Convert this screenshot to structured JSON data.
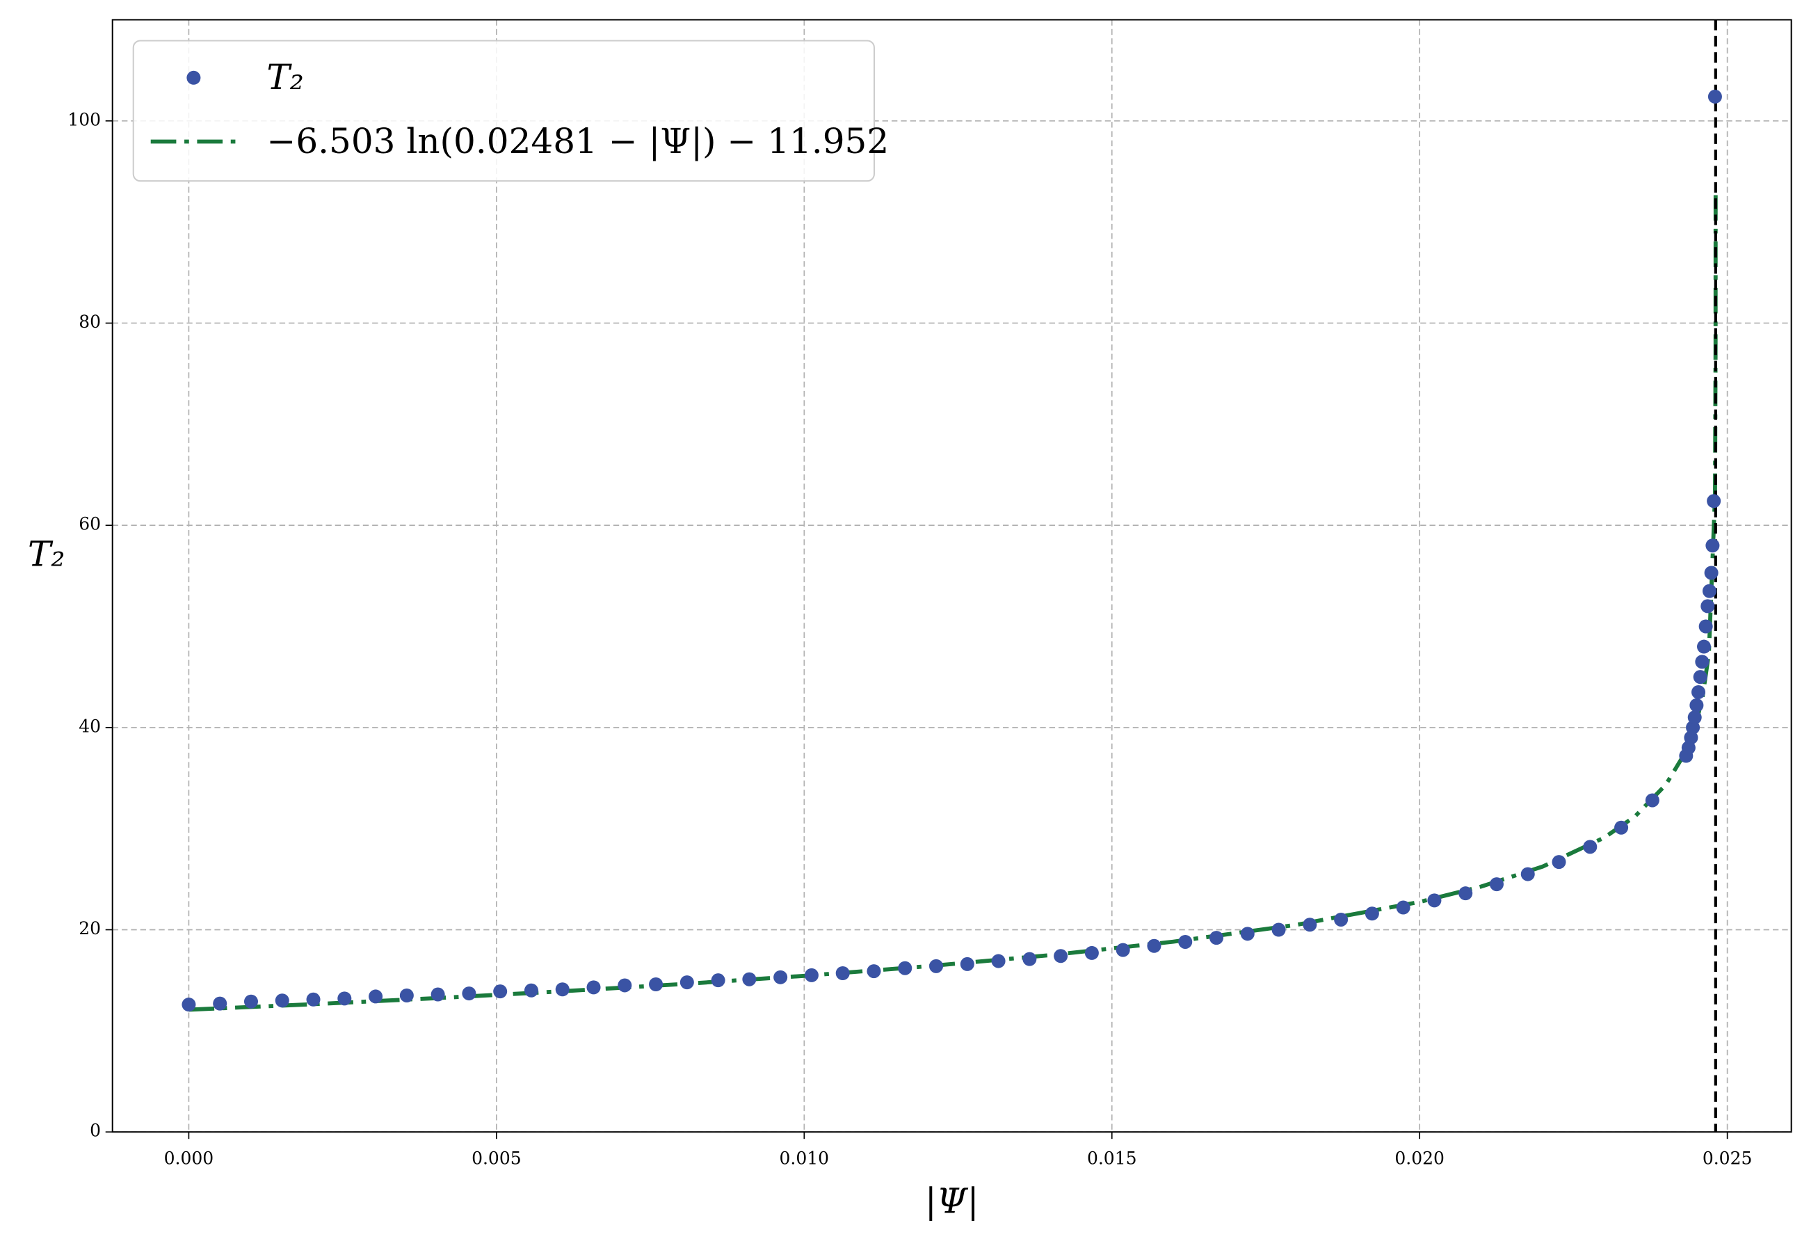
{
  "chart_data": {
    "type": "scatter",
    "xlabel": "|Ψ|",
    "ylabel": "T₂",
    "xlim": [
      -0.00124,
      0.02604
    ],
    "ylim": [
      0,
      110
    ],
    "xticks": [
      {
        "value": 0,
        "label": "0.000"
      },
      {
        "value": 0.005,
        "label": "0.005"
      },
      {
        "value": 0.01,
        "label": "0.010"
      },
      {
        "value": 0.015,
        "label": "0.015"
      },
      {
        "value": 0.02,
        "label": "0.020"
      },
      {
        "value": 0.025,
        "label": "0.025"
      }
    ],
    "yticks": [
      0,
      20,
      40,
      60,
      80,
      100
    ],
    "grid": true,
    "legend": "upper left",
    "series": [
      {
        "name": "T₂",
        "kind": "points",
        "color": "#3a53a4",
        "x": [
          0,
          0.000506,
          0.001012,
          0.001518,
          0.002024,
          0.00253,
          0.003036,
          0.003542,
          0.004048,
          0.004554,
          0.00506,
          0.005566,
          0.006072,
          0.006578,
          0.007084,
          0.00759,
          0.008096,
          0.008602,
          0.009108,
          0.009614,
          0.01012,
          0.010626,
          0.011132,
          0.011638,
          0.012144,
          0.01265,
          0.013156,
          0.013662,
          0.014168,
          0.014674,
          0.01518,
          0.015686,
          0.016192,
          0.016698,
          0.017204,
          0.01771,
          0.018216,
          0.018722,
          0.019228,
          0.019734,
          0.02024,
          0.020746,
          0.021252,
          0.021758,
          0.022264,
          0.02277,
          0.023276,
          0.023782,
          0.02433,
          0.02437,
          0.02441,
          0.02444,
          0.02447,
          0.0245,
          0.02453,
          0.02456,
          0.02459,
          0.02462,
          0.02465,
          0.02468,
          0.02471,
          0.02474,
          0.02476,
          0.02478,
          0.0248
        ],
        "values": [
          12.6,
          12.7,
          12.9,
          13.0,
          13.1,
          13.2,
          13.4,
          13.5,
          13.6,
          13.7,
          13.9,
          14.0,
          14.1,
          14.3,
          14.5,
          14.6,
          14.8,
          15.0,
          15.1,
          15.3,
          15.5,
          15.7,
          15.9,
          16.2,
          16.4,
          16.6,
          16.9,
          17.1,
          17.4,
          17.7,
          18.0,
          18.4,
          18.8,
          19.2,
          19.6,
          20.0,
          20.5,
          21.0,
          21.6,
          22.2,
          22.9,
          23.6,
          24.5,
          25.5,
          26.7,
          28.2,
          30.1,
          32.8,
          37.2,
          38.0,
          39.0,
          40.0,
          41.0,
          42.2,
          43.5,
          45.0,
          46.5,
          48.0,
          50.0,
          52.0,
          53.5,
          55.3,
          58.0,
          62.4,
          102.4
        ]
      },
      {
        "name": "−6.503 ln(0.02481 − |Ψ|) − 11.952",
        "kind": "dashdot",
        "color": "#1a7a3c",
        "x": [
          0,
          0.002,
          0.004,
          0.006,
          0.008,
          0.01,
          0.012,
          0.014,
          0.016,
          0.018,
          0.02,
          0.021,
          0.022,
          0.023,
          0.0235,
          0.024,
          0.0243,
          0.0245,
          0.0246,
          0.0247,
          0.0248,
          0.024809,
          0.0248099
        ],
        "values": [
          12.09,
          12.63,
          13.23,
          13.89,
          14.62,
          15.44,
          16.39,
          17.49,
          18.82,
          20.49,
          22.75,
          24.27,
          26.25,
          29.11,
          31.21,
          34.34,
          37.35,
          40.59,
          43.12,
          47.32,
          62.92,
          77.89,
          92.86
        ]
      }
    ],
    "vline": {
      "x": 0.02481,
      "color": "#000000"
    }
  }
}
